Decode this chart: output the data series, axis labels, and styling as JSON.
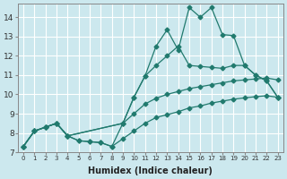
{
  "xlabel": "Humidex (Indice chaleur)",
  "bg_color": "#cce8ee",
  "grid_color": "#ffffff",
  "line_color": "#217a6e",
  "xlim": [
    -0.5,
    23.5
  ],
  "ylim": [
    7,
    14.7
  ],
  "yticks": [
    7,
    8,
    9,
    10,
    11,
    12,
    13,
    14
  ],
  "series1_x": [
    0,
    1,
    2,
    3,
    4,
    5,
    6,
    7,
    8,
    9,
    10,
    11,
    12,
    13,
    14,
    15,
    16,
    17,
    18,
    19,
    20,
    21,
    22,
    23
  ],
  "series1_y": [
    7.3,
    8.1,
    8.3,
    8.5,
    7.85,
    7.6,
    7.55,
    7.5,
    7.3,
    7.7,
    8.1,
    8.5,
    8.8,
    8.95,
    9.1,
    9.3,
    9.4,
    9.55,
    9.65,
    9.75,
    9.82,
    9.88,
    9.93,
    9.85
  ],
  "series2_x": [
    0,
    1,
    2,
    3,
    4,
    5,
    6,
    7,
    8,
    9,
    10,
    11,
    12,
    13,
    14,
    15,
    16,
    17,
    18,
    19,
    20,
    21,
    22,
    23
  ],
  "series2_y": [
    7.3,
    8.1,
    8.3,
    8.5,
    7.85,
    7.6,
    7.55,
    7.5,
    7.3,
    8.5,
    9.0,
    9.5,
    9.8,
    10.0,
    10.15,
    10.3,
    10.4,
    10.5,
    10.6,
    10.7,
    10.75,
    10.8,
    10.85,
    10.75
  ],
  "series3_x": [
    0,
    1,
    2,
    3,
    4,
    9,
    10,
    11,
    12,
    13,
    14,
    15,
    16,
    17,
    18,
    19,
    20,
    21,
    22,
    23
  ],
  "series3_y": [
    7.3,
    8.1,
    8.3,
    8.5,
    7.85,
    8.5,
    9.85,
    10.95,
    11.5,
    12.0,
    12.5,
    11.5,
    11.45,
    11.4,
    11.35,
    11.5,
    11.5,
    11.0,
    10.7,
    9.85
  ],
  "series4_x": [
    0,
    1,
    2,
    3,
    4,
    9,
    10,
    11,
    12,
    13,
    14,
    15,
    16,
    17,
    18,
    19,
    20,
    21,
    22,
    23
  ],
  "series4_y": [
    7.3,
    8.1,
    8.3,
    8.5,
    7.85,
    8.5,
    9.85,
    10.95,
    12.5,
    13.35,
    12.3,
    14.5,
    14.0,
    14.5,
    13.1,
    13.05,
    11.5,
    11.0,
    10.7,
    9.85
  ]
}
